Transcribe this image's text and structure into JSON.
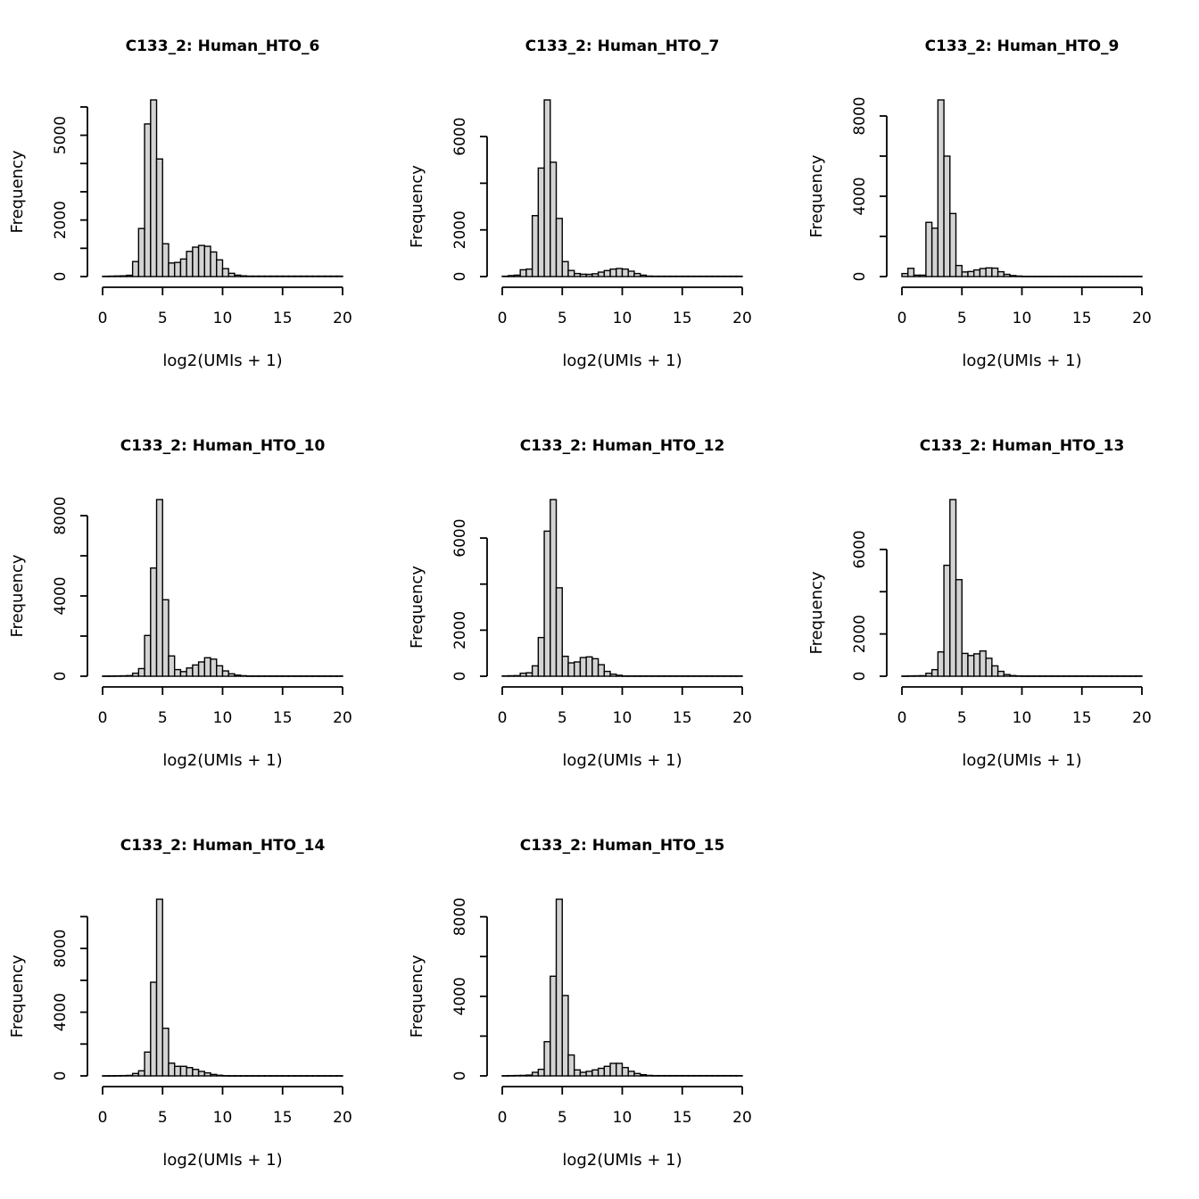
{
  "figure": {
    "background": "#ffffff",
    "bar_fill": "#d3d3d3",
    "bar_stroke": "#000000",
    "axis_color": "#000000",
    "xlabel": "log2(UMIs + 1)",
    "ylabel": "Frequency"
  },
  "chart_data": [
    {
      "type": "bar",
      "title": "C133_2: Human_HTO_6",
      "xlabel": "log2(UMIs + 1)",
      "ylabel": "Frequency",
      "xlim": [
        0,
        20
      ],
      "xticks": [
        0,
        5,
        10,
        15,
        20
      ],
      "yticks": [
        0,
        1000,
        2000,
        3000,
        4000,
        5000,
        6000
      ],
      "ytick_labels": [
        "0",
        "",
        "2000",
        "",
        "",
        "5000",
        ""
      ],
      "bin_start": 0,
      "bin_width": 0.5,
      "counts": [
        10,
        15,
        20,
        25,
        45,
        530,
        1700,
        5400,
        6250,
        4160,
        1160,
        480,
        500,
        620,
        890,
        1040,
        1100,
        1070,
        870,
        590,
        280,
        115,
        50,
        25,
        15,
        15,
        15,
        15,
        15,
        15,
        15,
        15,
        15,
        15,
        15,
        15,
        15,
        15,
        15,
        15
      ]
    },
    {
      "type": "bar",
      "title": "C133_2: Human_HTO_7",
      "xlabel": "log2(UMIs + 1)",
      "ylabel": "Frequency",
      "xlim": [
        0,
        20
      ],
      "xticks": [
        0,
        5,
        10,
        15,
        20
      ],
      "yticks": [
        0,
        2000,
        4000,
        6000
      ],
      "ytick_labels": [
        "0",
        "2000",
        "",
        "6000"
      ],
      "bin_start": 0,
      "bin_width": 0.5,
      "counts": [
        15,
        40,
        60,
        290,
        320,
        2610,
        4650,
        7570,
        4900,
        2490,
        640,
        260,
        130,
        100,
        95,
        120,
        190,
        255,
        320,
        345,
        320,
        230,
        130,
        60,
        20,
        15,
        15,
        15,
        15,
        15,
        15,
        15,
        15,
        15,
        15,
        15,
        15,
        15,
        15,
        15
      ]
    },
    {
      "type": "bar",
      "title": "C133_2: Human_HTO_9",
      "xlabel": "log2(UMIs + 1)",
      "ylabel": "Frequency",
      "xlim": [
        0,
        20
      ],
      "xticks": [
        0,
        5,
        10,
        15,
        20
      ],
      "yticks": [
        0,
        2000,
        4000,
        6000,
        8000
      ],
      "ytick_labels": [
        "0",
        "",
        "4000",
        "",
        "8000"
      ],
      "bin_start": 0,
      "bin_width": 0.5,
      "counts": [
        150,
        410,
        70,
        70,
        2700,
        2410,
        8800,
        6000,
        3140,
        550,
        230,
        250,
        330,
        400,
        430,
        420,
        240,
        110,
        50,
        25,
        12,
        12,
        12,
        12,
        12,
        12,
        12,
        12,
        12,
        12,
        12,
        12,
        12,
        12,
        12,
        12,
        12,
        12,
        12,
        12
      ]
    },
    {
      "type": "bar",
      "title": "C133_2: Human_HTO_10",
      "xlabel": "log2(UMIs + 1)",
      "ylabel": "Frequency",
      "xlim": [
        0,
        20
      ],
      "xticks": [
        0,
        5,
        10,
        15,
        20
      ],
      "yticks": [
        0,
        2000,
        4000,
        6000,
        8000
      ],
      "ytick_labels": [
        "0",
        "",
        "4000",
        "",
        "8000"
      ],
      "bin_start": 0,
      "bin_width": 0.5,
      "counts": [
        10,
        12,
        15,
        20,
        30,
        150,
        380,
        2030,
        5390,
        8800,
        3810,
        1010,
        330,
        230,
        410,
        560,
        710,
        920,
        850,
        520,
        265,
        120,
        55,
        25,
        12,
        12,
        12,
        12,
        12,
        12,
        12,
        12,
        12,
        12,
        12,
        12,
        12,
        12,
        12,
        12
      ]
    },
    {
      "type": "bar",
      "title": "C133_2: Human_HTO_12",
      "xlabel": "log2(UMIs + 1)",
      "ylabel": "Frequency",
      "xlim": [
        0,
        20
      ],
      "xticks": [
        0,
        5,
        10,
        15,
        20
      ],
      "yticks": [
        0,
        2000,
        4000,
        6000
      ],
      "ytick_labels": [
        "0",
        "2000",
        "",
        "6000"
      ],
      "bin_start": 0,
      "bin_width": 0.5,
      "counts": [
        15,
        20,
        25,
        130,
        150,
        450,
        1680,
        6300,
        7670,
        3840,
        865,
        580,
        620,
        810,
        840,
        760,
        500,
        210,
        90,
        40,
        12,
        12,
        12,
        12,
        12,
        12,
        12,
        12,
        12,
        12,
        12,
        12,
        12,
        12,
        12,
        12,
        12,
        12,
        12,
        12
      ]
    },
    {
      "type": "bar",
      "title": "C133_2: Human_HTO_13",
      "xlabel": "log2(UMIs + 1)",
      "ylabel": "Frequency",
      "xlim": [
        0,
        20
      ],
      "xticks": [
        0,
        5,
        10,
        15,
        20
      ],
      "yticks": [
        0,
        2000,
        4000,
        6000
      ],
      "ytick_labels": [
        "0",
        "2000",
        "",
        "6000"
      ],
      "bin_start": 0,
      "bin_width": 0.5,
      "counts": [
        10,
        15,
        20,
        25,
        140,
        310,
        1150,
        5250,
        8360,
        4570,
        1080,
        980,
        1060,
        1195,
        850,
        490,
        230,
        80,
        30,
        15,
        12,
        12,
        12,
        12,
        12,
        12,
        12,
        12,
        12,
        12,
        12,
        12,
        12,
        12,
        12,
        12,
        12,
        12,
        12,
        12
      ]
    },
    {
      "type": "bar",
      "title": "C133_2: Human_HTO_14",
      "xlabel": "log2(UMIs + 1)",
      "ylabel": "Frequency",
      "xlim": [
        0,
        20
      ],
      "xticks": [
        0,
        5,
        10,
        15,
        20
      ],
      "yticks": [
        0,
        2000,
        4000,
        6000,
        8000,
        10000
      ],
      "ytick_labels": [
        "0",
        "",
        "4000",
        "",
        "8000",
        ""
      ],
      "bin_start": 0,
      "bin_width": 0.5,
      "counts": [
        10,
        12,
        15,
        20,
        30,
        150,
        320,
        1495,
        5880,
        11090,
        2990,
        800,
        600,
        600,
        520,
        410,
        280,
        190,
        90,
        40,
        15,
        12,
        12,
        12,
        12,
        12,
        12,
        12,
        12,
        12,
        12,
        12,
        12,
        12,
        12,
        12,
        12,
        12,
        12,
        12
      ]
    },
    {
      "type": "bar",
      "title": "C133_2: Human_HTO_15",
      "xlabel": "log2(UMIs + 1)",
      "ylabel": "Frequency",
      "xlim": [
        0,
        20
      ],
      "xticks": [
        0,
        5,
        10,
        15,
        20
      ],
      "yticks": [
        0,
        2000,
        4000,
        6000,
        8000
      ],
      "ytick_labels": [
        "0",
        "",
        "4000",
        "",
        "8000"
      ],
      "bin_start": 0,
      "bin_width": 0.5,
      "counts": [
        10,
        15,
        20,
        25,
        40,
        180,
        330,
        1720,
        5010,
        8880,
        4040,
        1050,
        300,
        180,
        230,
        300,
        380,
        480,
        630,
        630,
        420,
        230,
        120,
        60,
        25,
        15,
        15,
        15,
        15,
        15,
        15,
        15,
        15,
        15,
        15,
        15,
        15,
        15,
        15,
        15
      ]
    }
  ]
}
